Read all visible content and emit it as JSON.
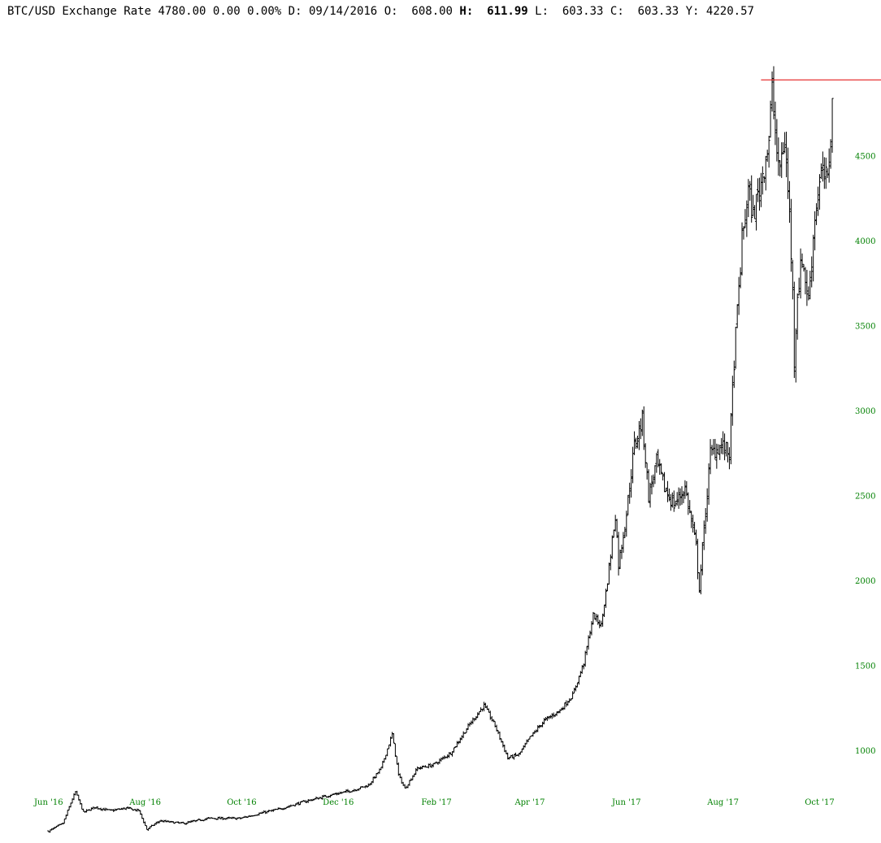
{
  "header": {
    "symbol": "BTC/USD Exchange Rate",
    "last": "4780.00",
    "change": "0.00",
    "change_pct": "0.00%",
    "d_label": "D:",
    "date": "09/14/2016",
    "o_label": "O:",
    "open": "608.00",
    "h_label": "H:",
    "high": "611.99",
    "l_label": "L:",
    "low": "603.33",
    "c_label": "C:",
    "close": "603.33",
    "y_label": "Y:",
    "y_value": "4220.57"
  },
  "colors": {
    "bars": "#000000",
    "axis_text": "#008000",
    "reference_line": "#e00000"
  },
  "chart_data": {
    "type": "ohlc",
    "title": "",
    "xlabel": "",
    "ylabel": "",
    "x_range": [
      "2016-05-28",
      "2017-10-10"
    ],
    "ylim": [
      460,
      5420
    ],
    "y_ticks": [
      1000,
      1500,
      2000,
      2500,
      3000,
      3500,
      4000,
      4500
    ],
    "x_ticks": [
      {
        "label": "Jun '16",
        "date": "2016-06-01"
      },
      {
        "label": "Aug '16",
        "date": "2016-08-01"
      },
      {
        "label": "Oct '16",
        "date": "2016-10-01"
      },
      {
        "label": "Dec '16",
        "date": "2016-12-01"
      },
      {
        "label": "Feb '17",
        "date": "2017-02-01"
      },
      {
        "label": "Apr '17",
        "date": "2017-04-01"
      },
      {
        "label": "Jun '17",
        "date": "2017-06-01"
      },
      {
        "label": "Aug '17",
        "date": "2017-08-01"
      },
      {
        "label": "Oct '17",
        "date": "2017-10-01"
      }
    ],
    "reference_line": {
      "value": 4950,
      "from": "2017-08-25"
    },
    "anchors": [
      [
        "2016-06-01",
        530
      ],
      [
        "2016-06-10",
        575
      ],
      [
        "2016-06-16",
        720
      ],
      [
        "2016-06-18",
        760
      ],
      [
        "2016-06-23",
        640
      ],
      [
        "2016-06-30",
        670
      ],
      [
        "2016-07-10",
        650
      ],
      [
        "2016-07-20",
        665
      ],
      [
        "2016-07-28",
        650
      ],
      [
        "2016-08-02",
        540
      ],
      [
        "2016-08-10",
        590
      ],
      [
        "2016-08-25",
        575
      ],
      [
        "2016-09-10",
        605
      ],
      [
        "2016-09-30",
        605
      ],
      [
        "2016-10-15",
        640
      ],
      [
        "2016-10-25",
        660
      ],
      [
        "2016-11-10",
        705
      ],
      [
        "2016-11-25",
        740
      ],
      [
        "2016-12-10",
        770
      ],
      [
        "2016-12-20",
        800
      ],
      [
        "2016-12-28",
        900
      ],
      [
        "2017-01-04",
        1100
      ],
      [
        "2017-01-08",
        860
      ],
      [
        "2017-01-12",
        780
      ],
      [
        "2017-01-20",
        900
      ],
      [
        "2017-01-30",
        920
      ],
      [
        "2017-02-10",
        990
      ],
      [
        "2017-02-22",
        1160
      ],
      [
        "2017-03-03",
        1270
      ],
      [
        "2017-03-10",
        1150
      ],
      [
        "2017-03-18",
        960
      ],
      [
        "2017-03-25",
        980
      ],
      [
        "2017-04-01",
        1080
      ],
      [
        "2017-04-10",
        1180
      ],
      [
        "2017-04-20",
        1240
      ],
      [
        "2017-04-28",
        1330
      ],
      [
        "2017-05-05",
        1520
      ],
      [
        "2017-05-11",
        1800
      ],
      [
        "2017-05-16",
        1740
      ],
      [
        "2017-05-20",
        2000
      ],
      [
        "2017-05-25",
        2400
      ],
      [
        "2017-05-27",
        2100
      ],
      [
        "2017-06-01",
        2400
      ],
      [
        "2017-06-06",
        2800
      ],
      [
        "2017-06-11",
        2950
      ],
      [
        "2017-06-15",
        2500
      ],
      [
        "2017-06-20",
        2700
      ],
      [
        "2017-06-25",
        2550
      ],
      [
        "2017-07-01",
        2450
      ],
      [
        "2017-07-08",
        2550
      ],
      [
        "2017-07-15",
        2200
      ],
      [
        "2017-07-17",
        1950
      ],
      [
        "2017-07-20",
        2300
      ],
      [
        "2017-07-24",
        2750
      ],
      [
        "2017-07-31",
        2800
      ],
      [
        "2017-08-05",
        2750
      ],
      [
        "2017-08-08",
        3300
      ],
      [
        "2017-08-13",
        4000
      ],
      [
        "2017-08-17",
        4300
      ],
      [
        "2017-08-20",
        4150
      ],
      [
        "2017-08-25",
        4350
      ],
      [
        "2017-08-30",
        4600
      ],
      [
        "2017-09-01",
        4900
      ],
      [
        "2017-09-05",
        4400
      ],
      [
        "2017-09-09",
        4600
      ],
      [
        "2017-09-12",
        4150
      ],
      [
        "2017-09-14",
        3700
      ],
      [
        "2017-09-15",
        3300
      ],
      [
        "2017-09-17",
        3700
      ],
      [
        "2017-09-20",
        3900
      ],
      [
        "2017-09-24",
        3650
      ],
      [
        "2017-09-28",
        4150
      ],
      [
        "2017-10-02",
        4400
      ],
      [
        "2017-10-06",
        4350
      ],
      [
        "2017-10-09",
        4800
      ]
    ]
  }
}
